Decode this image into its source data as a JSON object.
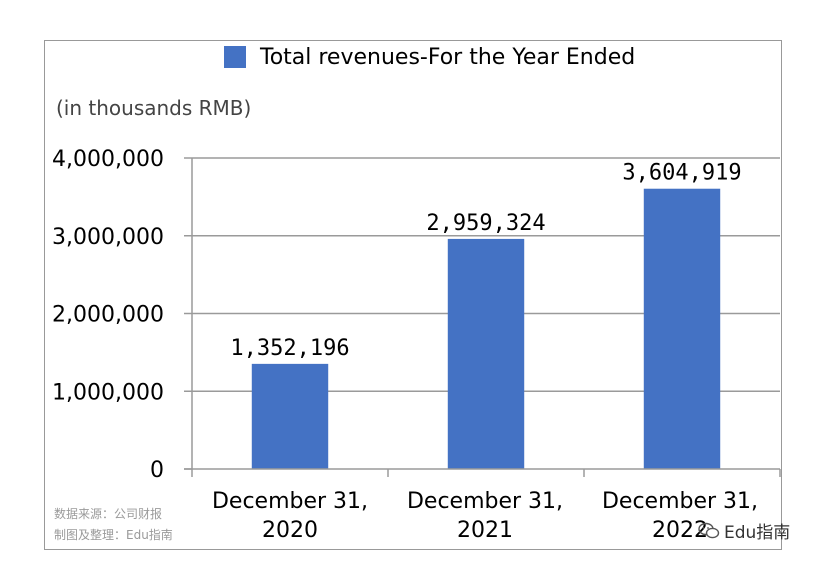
{
  "chart_data": {
    "type": "bar",
    "title": "",
    "legend": {
      "label": "Total revenues-For the Year Ended",
      "color": "#4472C4",
      "position": "top"
    },
    "unit_label": "(in thousands RMB)",
    "categories": [
      [
        "December 31,",
        "2020"
      ],
      [
        "December 31,",
        "2021"
      ],
      [
        "December 31,",
        "2022"
      ]
    ],
    "values": [
      1352196,
      2959324,
      3604919
    ],
    "value_labels": [
      "1,352,196",
      "2,959,324",
      "3,604,919"
    ],
    "ylim": [
      0,
      4000000
    ],
    "yticks": [
      0,
      1000000,
      2000000,
      3000000,
      4000000
    ],
    "ytick_labels": [
      "0",
      "1,000,000",
      "2,000,000",
      "3,000,000",
      "4,000,000"
    ],
    "grid": true,
    "bar_color": "#4472C4",
    "grid_color": "#9a9a9a"
  },
  "source": {
    "line1": "数据来源：公司财报",
    "line2": "制图及整理：Edu指南"
  },
  "watermark": {
    "text": "Edu指南",
    "icon": "wechat-icon"
  }
}
